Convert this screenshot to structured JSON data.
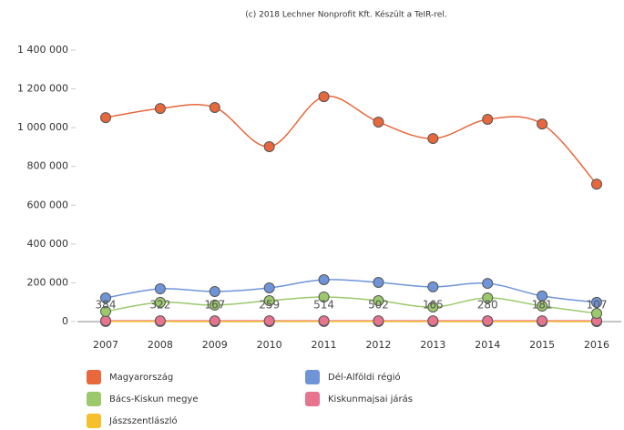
{
  "chart_data": {
    "type": "line",
    "title": "(c) 2018 Lechner Nonprofit Kft. Készült a TeIR-rel.",
    "categories": [
      "2007",
      "2008",
      "2009",
      "2010",
      "2011",
      "2012",
      "2013",
      "2014",
      "2015",
      "2016"
    ],
    "ylim": [
      0,
      1400000
    ],
    "yticks": [
      0,
      {
        "value": 200000,
        "label": "200 000"
      },
      {
        "value": 400000,
        "label": "400 000"
      },
      {
        "value": 600000,
        "label": "600 000"
      },
      {
        "value": 800000,
        "label": "800 000"
      },
      {
        "value": 1000000,
        "label": "1 000 000"
      },
      {
        "value": 1200000,
        "label": "1 200 000"
      },
      {
        "value": 1400000,
        "label": "1 400 000"
      }
    ],
    "series": [
      {
        "name": "Magyarország",
        "color": "#e8673c",
        "values": [
          1052000,
          1099000,
          1104000,
          902000,
          1160000,
          1029000,
          944000,
          1043000,
          1019000,
          709000
        ]
      },
      {
        "name": "Dél-Alföldi régió",
        "color": "#6f95d8",
        "values": [
          122000,
          169000,
          155000,
          174000,
          216000,
          202000,
          179000,
          197000,
          132000,
          99000
        ]
      },
      {
        "name": "Bács-Kiskun megye",
        "color": "#9cc96b",
        "values": [
          52000,
          99000,
          85000,
          108000,
          127000,
          108000,
          75000,
          122000,
          80000,
          42000
        ]
      },
      {
        "name": "Kiskunmajsai járás",
        "color": "#e8738f",
        "values": [
          4000,
          4000,
          4000,
          4000,
          4000,
          4000,
          4000,
          4000,
          4000,
          4000
        ]
      },
      {
        "name": "Jászszentlászló",
        "color": "#f5c02b",
        "values": [
          384,
          322,
          167,
          259,
          514,
          502,
          165,
          280,
          181,
          107
        ],
        "data_labels": true
      }
    ]
  }
}
